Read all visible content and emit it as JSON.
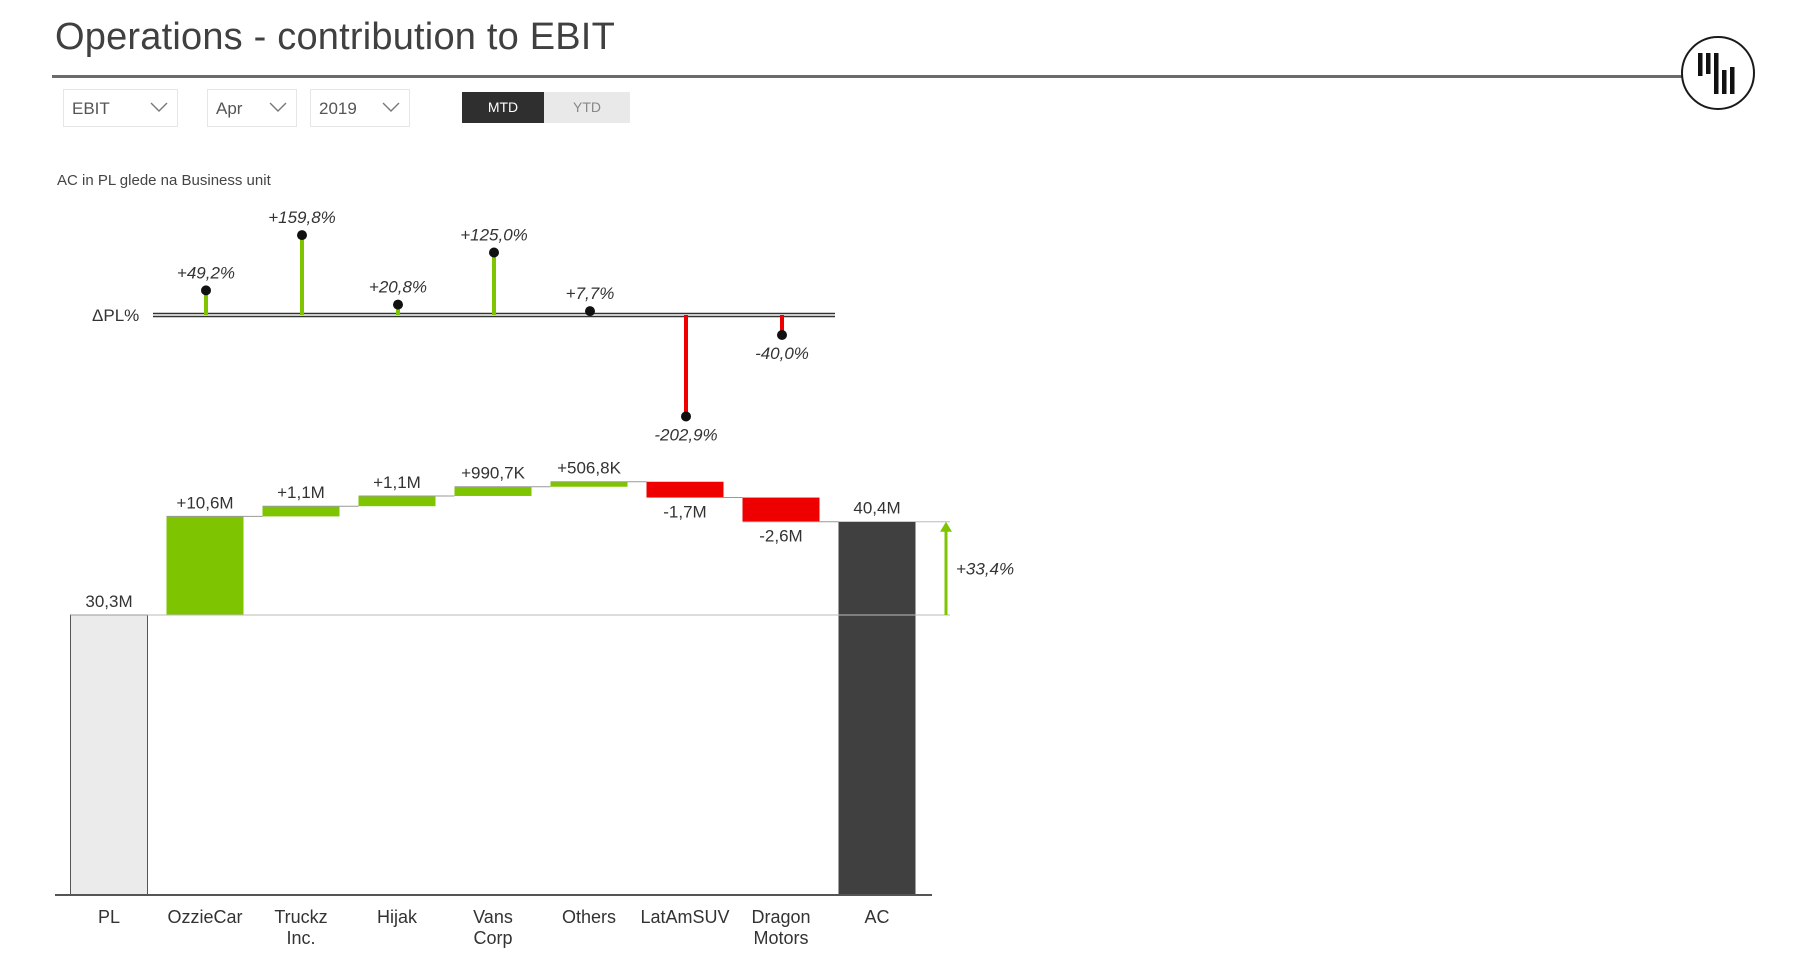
{
  "header": {
    "title": "Operations - contribution to EBIT",
    "logo_icon": "bar-chart-logo-icon"
  },
  "filters": {
    "measure": {
      "value": "EBIT",
      "icon": "chevron-down-icon"
    },
    "month": {
      "value": "Apr",
      "icon": "chevron-down-icon"
    },
    "year": {
      "value": "2019",
      "icon": "chevron-down-icon"
    },
    "period_toggle": {
      "options": [
        "MTD",
        "YTD"
      ],
      "selected": "MTD"
    }
  },
  "colors": {
    "positive": "#7fc400",
    "negative": "#ee0000",
    "pl_bar": "#ebebeb",
    "ac_bar": "#404040",
    "baseline": "#333333"
  },
  "chart_data": [
    {
      "type": "pin",
      "title": "AC in PL glede na Business unit",
      "ylabel": "ΔPL%",
      "categories": [
        "OzzieCar",
        "Truckz Inc.",
        "Hijak",
        "Vans Corp",
        "Others",
        "LatAmSUV",
        "Dragon Motors"
      ],
      "values": [
        49.2,
        159.8,
        20.8,
        125.0,
        7.7,
        -202.9,
        -40.0
      ],
      "labels": [
        "+49,2%",
        "+159,8%",
        "+20,8%",
        "+125,0%",
        "+7,7%",
        "-202,9%",
        "-40,0%"
      ]
    },
    {
      "type": "waterfall",
      "title": "AC in PL glede na Business unit",
      "categories": [
        "PL",
        "OzzieCar",
        "Truckz Inc.",
        "Hijak",
        "Vans Corp",
        "Others",
        "LatAmSUV",
        "Dragon Motors",
        "AC"
      ],
      "category_lines": [
        [
          "PL"
        ],
        [
          "OzzieCar"
        ],
        [
          "Truckz",
          "Inc."
        ],
        [
          "Hijak"
        ],
        [
          "Vans",
          "Corp"
        ],
        [
          "Others"
        ],
        [
          "LatAmSUV"
        ],
        [
          "Dragon",
          "Motors"
        ],
        [
          "AC"
        ]
      ],
      "values_m": [
        30.3,
        10.6,
        1.1,
        1.1,
        0.9907,
        0.5068,
        -1.7,
        -2.6,
        40.4
      ],
      "labels": [
        "30,3M",
        "+10,6M",
        "+1,1M",
        "+1,1M",
        "+990,7K",
        "+506,8K",
        "-1,7M",
        "-2,6M",
        "40,4M"
      ],
      "kinds": [
        "total",
        "delta",
        "delta",
        "delta",
        "delta",
        "delta",
        "delta",
        "delta",
        "total"
      ],
      "variance_annotation": {
        "label": "+33,4%",
        "from": "PL",
        "to": "AC"
      }
    }
  ]
}
